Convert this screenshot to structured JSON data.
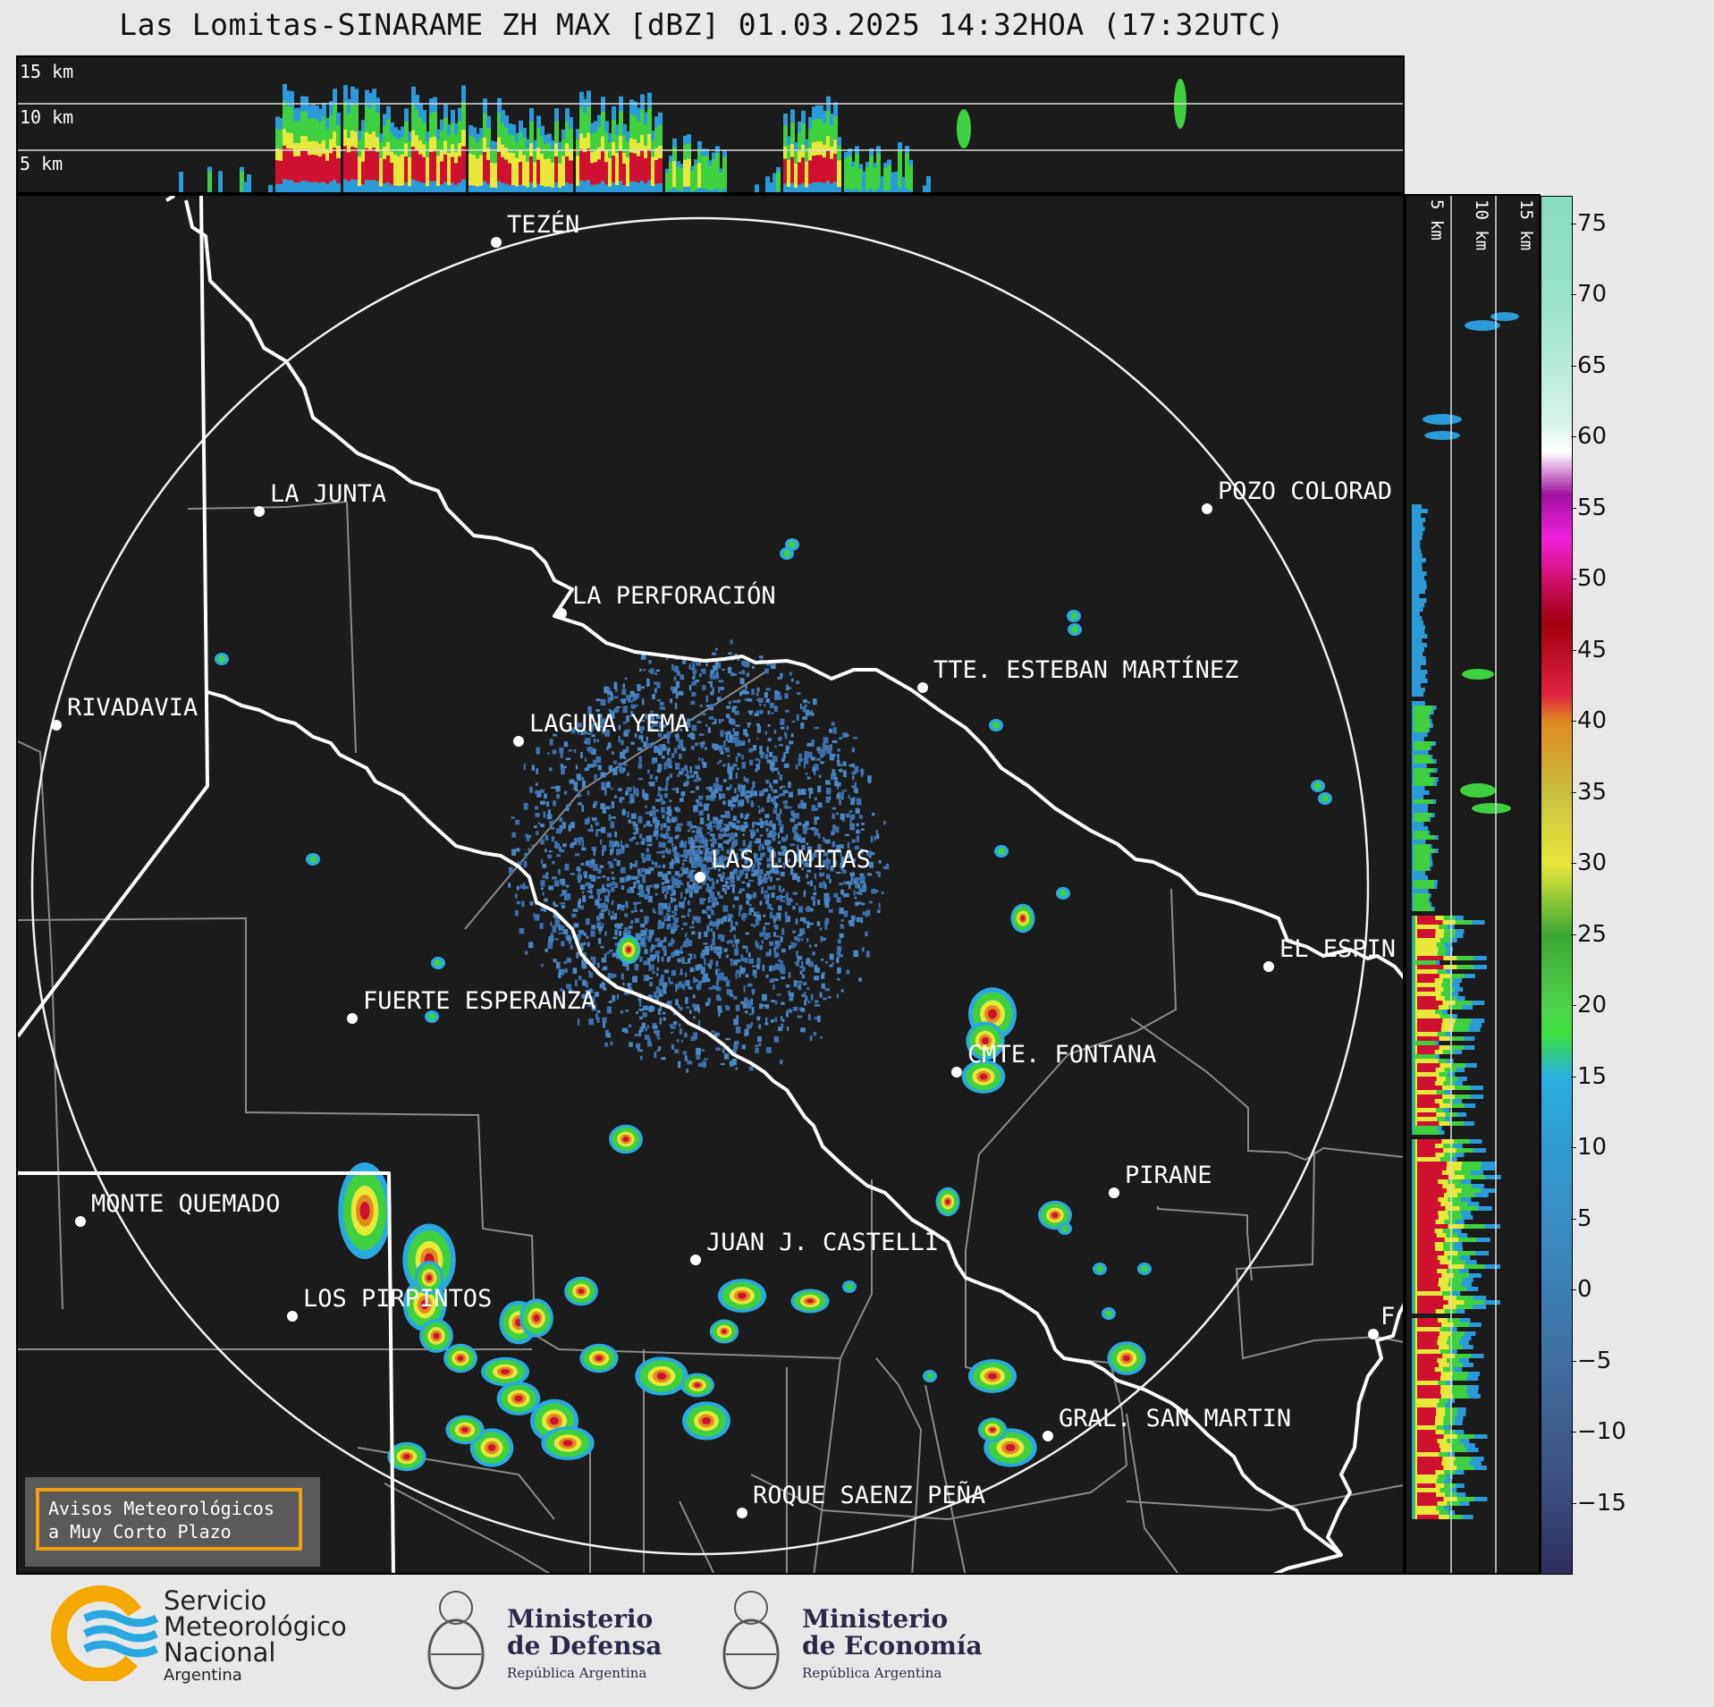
{
  "title": "Las Lomitas-SINARAME ZH MAX [dBZ] 01.03.2025 14:32HOA (17:32UTC)",
  "top_profile": {
    "heights": [
      "15 km",
      "10 km",
      "5 km"
    ]
  },
  "side_profile": {
    "heights": [
      "5 km",
      "10 km",
      "15 km"
    ]
  },
  "colorbar": {
    "ticks": [
      "75",
      "70",
      "65",
      "60",
      "55",
      "50",
      "45",
      "40",
      "35",
      "30",
      "25",
      "20",
      "15",
      "10",
      "5",
      "0",
      "−5",
      "−10",
      "−15"
    ],
    "min": -20,
    "max": 77
  },
  "cities": [
    {
      "name": "TEZÉN"
    },
    {
      "name": "LA JUNTA"
    },
    {
      "name": "POZO COLORAD"
    },
    {
      "name": "LA PERFORACIÓN"
    },
    {
      "name": "TTE. ESTEBAN MARTÍNEZ"
    },
    {
      "name": "RIVADAVIA"
    },
    {
      "name": "LAGUNA YEMA"
    },
    {
      "name": "LAS LOMITAS"
    },
    {
      "name": "EL ESPIN"
    },
    {
      "name": "FUERTE ESPERANZA"
    },
    {
      "name": "CMTE. FONTANA"
    },
    {
      "name": "PIRANE"
    },
    {
      "name": "MONTE QUEMADO"
    },
    {
      "name": "JUAN J. CASTELLI"
    },
    {
      "name": "LOS PIRPINTOS"
    },
    {
      "name": "GRAL. SAN MARTIN"
    },
    {
      "name": "ROQUE SAENZ PEÑA"
    },
    {
      "name": "F"
    }
  ],
  "notice": {
    "line1": "Avisos Meteorológicos",
    "line2": "a Muy Corto Plazo"
  },
  "logos": {
    "smn": {
      "line1": "Servicio",
      "line2": "Meteorológico",
      "line3": "Nacional",
      "line4": "Argentina"
    },
    "defensa": {
      "line1": "Ministerio",
      "line2": "de Defensa",
      "line3": "República Argentina"
    },
    "economia": {
      "line1": "Ministerio",
      "line2": "de Economía",
      "line3": "República Argentina"
    }
  },
  "colors": {
    "background": "#1b1b1b",
    "page": "#e8e8e8",
    "notice_border": "#f0a010",
    "smn_orange": "#f5a800",
    "smn_blue": "#29a8e0"
  }
}
